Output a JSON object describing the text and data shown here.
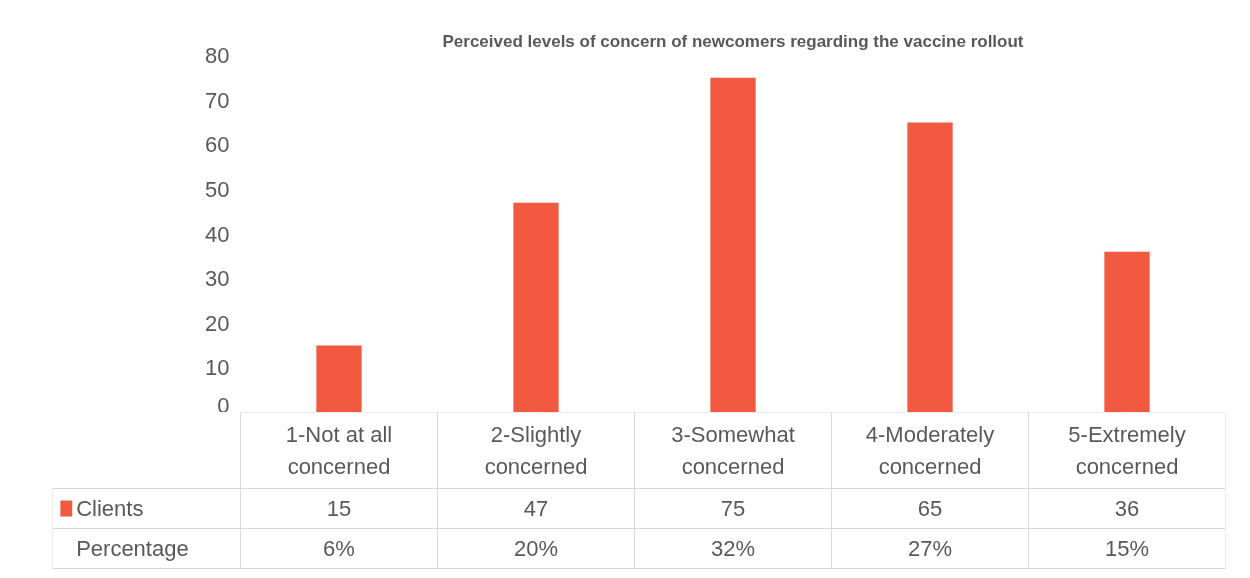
{
  "chart_data": {
    "type": "bar",
    "title": "Perceived levels of concern of newcomers regarding the vaccine rollout",
    "categories": [
      "1-Not at all concerned",
      "2-Slightly concerned",
      "3-Somewhat concerned",
      "4-Moderately concerned",
      "5-Extremely concerned"
    ],
    "series": [
      {
        "name": "Clients",
        "color": "#f15a40",
        "values": [
          15,
          47,
          75,
          65,
          36
        ]
      }
    ],
    "ylim": [
      0,
      80
    ],
    "yticks": [
      0,
      10,
      20,
      30,
      40,
      50,
      60,
      70,
      80
    ],
    "grid": false,
    "legend": "bottom",
    "data_labels": true,
    "annotations": [
      "Percentage",
      "6%",
      "20%",
      "32%",
      "27%",
      "15%"
    ]
  }
}
